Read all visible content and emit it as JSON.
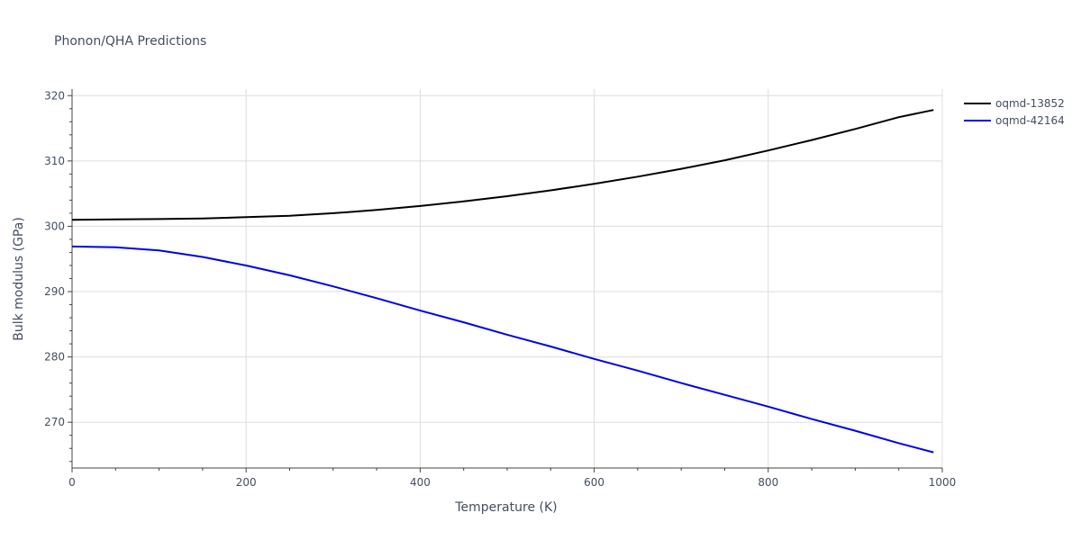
{
  "chart_data": {
    "type": "line",
    "title": "Phonon/QHA Predictions",
    "xlabel": "Temperature (K)",
    "ylabel": "Bulk modulus (GPa)",
    "xlim": [
      0,
      1000
    ],
    "ylim": [
      263,
      321
    ],
    "x_ticks": [
      0,
      200,
      400,
      600,
      800,
      1000
    ],
    "y_ticks": [
      270,
      280,
      290,
      300,
      310,
      320
    ],
    "grid": true,
    "legend_position": "right",
    "series": [
      {
        "name": "oqmd-13852",
        "color": "#000000",
        "x": [
          0,
          50,
          100,
          150,
          200,
          250,
          300,
          350,
          400,
          450,
          500,
          550,
          600,
          650,
          700,
          750,
          800,
          850,
          900,
          950,
          990
        ],
        "y": [
          301.0,
          301.05,
          301.1,
          301.2,
          301.4,
          301.6,
          302.0,
          302.5,
          303.1,
          303.8,
          304.6,
          305.5,
          306.5,
          307.6,
          308.8,
          310.1,
          311.6,
          313.2,
          314.9,
          316.7,
          317.8
        ]
      },
      {
        "name": "oqmd-42164",
        "color": "#0000ee",
        "x": [
          0,
          50,
          100,
          150,
          200,
          250,
          300,
          350,
          400,
          450,
          500,
          550,
          600,
          650,
          700,
          750,
          800,
          850,
          900,
          950,
          990
        ],
        "y": [
          296.9,
          296.8,
          296.3,
          295.3,
          294.0,
          292.5,
          290.8,
          289.0,
          287.1,
          285.3,
          283.4,
          281.6,
          279.7,
          277.9,
          276.0,
          274.2,
          272.4,
          270.5,
          268.7,
          266.8,
          265.4
        ]
      }
    ]
  }
}
